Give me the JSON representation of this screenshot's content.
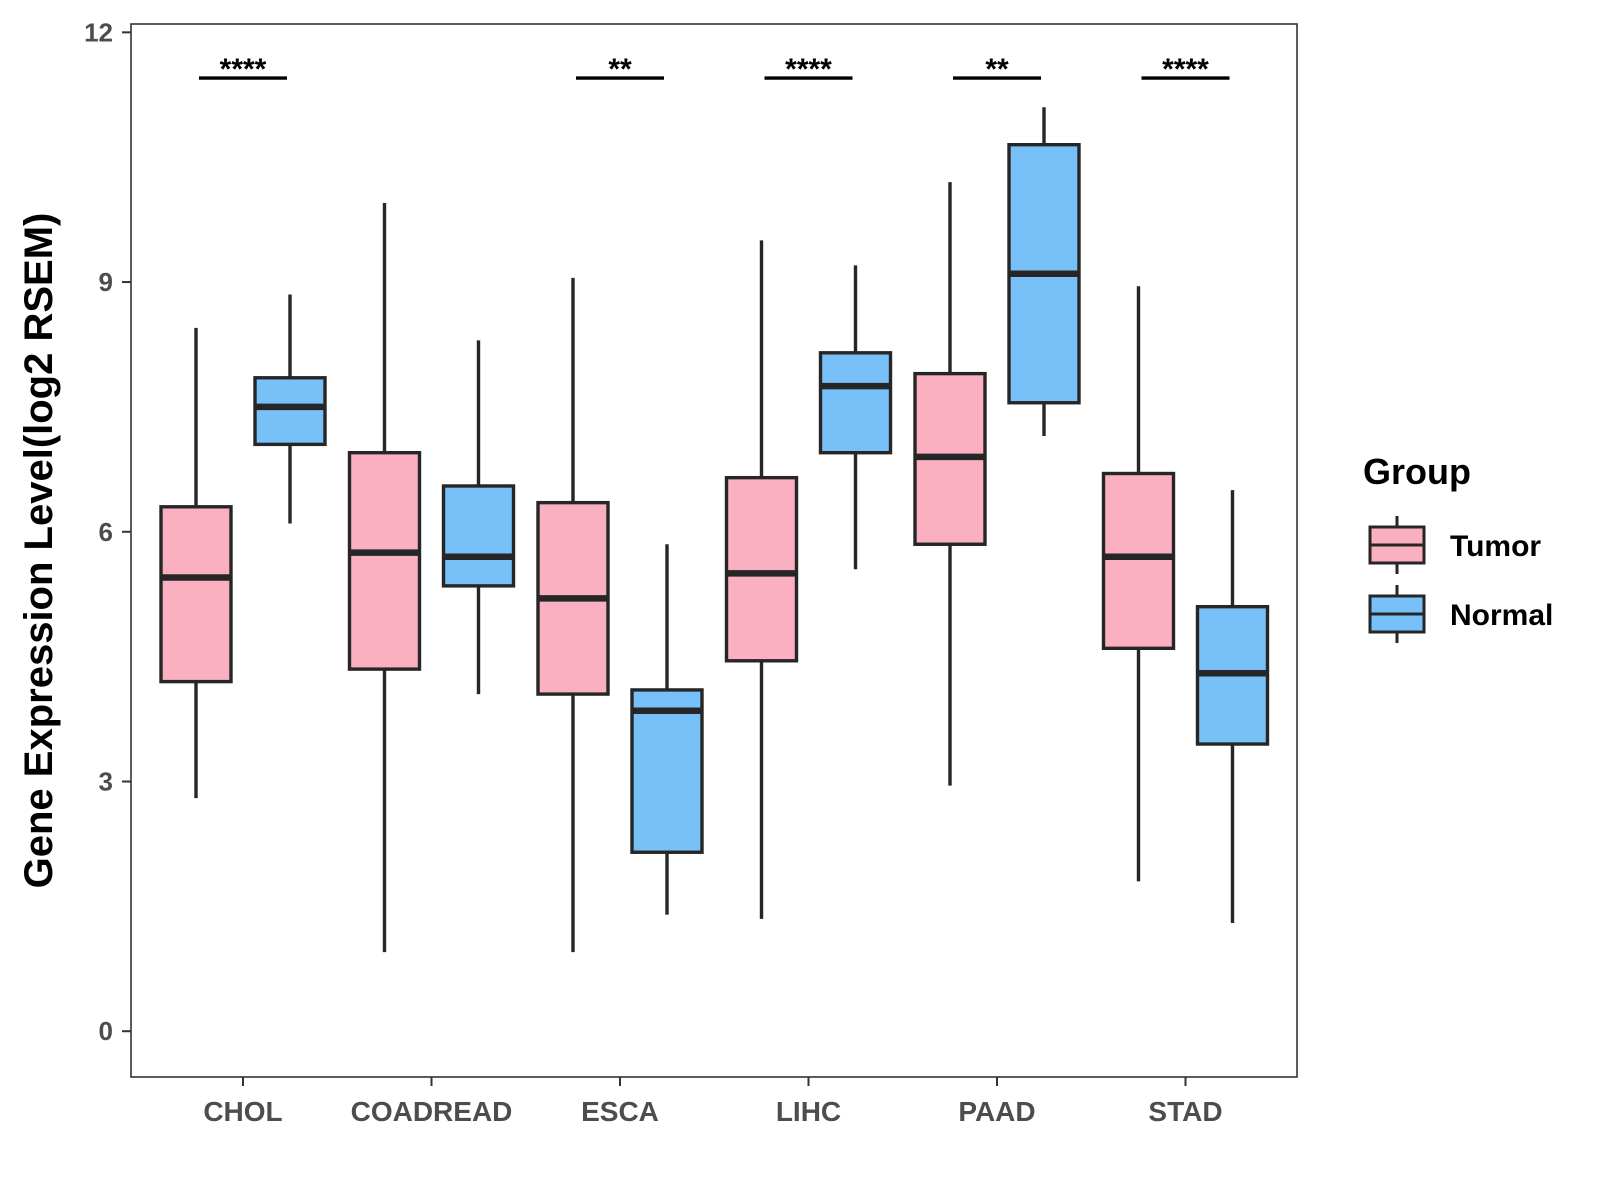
{
  "chart_data": {
    "type": "boxplot",
    "title": "",
    "xlabel": "",
    "ylabel": "Gene Expression Level(log2 RSEM)",
    "ylim": [
      -0.55,
      12.1
    ],
    "yticks": [
      0,
      3,
      6,
      9,
      12
    ],
    "grid": false,
    "categories": [
      "CHOL",
      "COADREAD",
      "ESCA",
      "LIHC",
      "PAAD",
      "STAD"
    ],
    "legend": {
      "title": "Group",
      "position": "right",
      "entries": [
        {
          "name": "Tumor",
          "color": "#FBB0C2"
        },
        {
          "name": "Normal",
          "color": "#78C1F8"
        }
      ]
    },
    "series": [
      {
        "name": "Tumor",
        "color": "#FBB0C2",
        "boxes": [
          {
            "min": 2.8,
            "q1": 4.2,
            "median": 5.45,
            "q3": 6.3,
            "max": 8.45
          },
          {
            "min": 0.95,
            "q1": 4.35,
            "median": 5.75,
            "q3": 6.95,
            "max": 9.95
          },
          {
            "min": 0.95,
            "q1": 4.05,
            "median": 5.2,
            "q3": 6.35,
            "max": 9.05
          },
          {
            "min": 1.35,
            "q1": 4.45,
            "median": 5.5,
            "q3": 6.65,
            "max": 9.5
          },
          {
            "min": 2.95,
            "q1": 5.85,
            "median": 6.9,
            "q3": 7.9,
            "max": 10.2
          },
          {
            "min": 1.8,
            "q1": 4.6,
            "median": 5.7,
            "q3": 6.7,
            "max": 8.95
          }
        ]
      },
      {
        "name": "Normal",
        "color": "#78C1F8",
        "boxes": [
          {
            "min": 6.1,
            "q1": 7.05,
            "median": 7.5,
            "q3": 7.85,
            "max": 8.85
          },
          {
            "min": 4.05,
            "q1": 5.35,
            "median": 5.7,
            "q3": 6.55,
            "max": 8.3
          },
          {
            "min": 1.4,
            "q1": 2.15,
            "median": 3.85,
            "q3": 4.1,
            "max": 5.85
          },
          {
            "min": 5.55,
            "q1": 6.95,
            "median": 7.75,
            "q3": 8.15,
            "max": 9.2
          },
          {
            "min": 7.15,
            "q1": 7.55,
            "median": 9.1,
            "q3": 10.65,
            "max": 11.1
          },
          {
            "min": 1.3,
            "q1": 3.45,
            "median": 4.3,
            "q3": 5.1,
            "max": 6.5
          }
        ]
      }
    ],
    "significance": [
      {
        "category": "CHOL",
        "label": "****"
      },
      {
        "category": "ESCA",
        "label": "**"
      },
      {
        "category": "LIHC",
        "label": "****"
      },
      {
        "category": "PAAD",
        "label": "**"
      },
      {
        "category": "STAD",
        "label": "****"
      }
    ],
    "significance_level": 11.45
  }
}
